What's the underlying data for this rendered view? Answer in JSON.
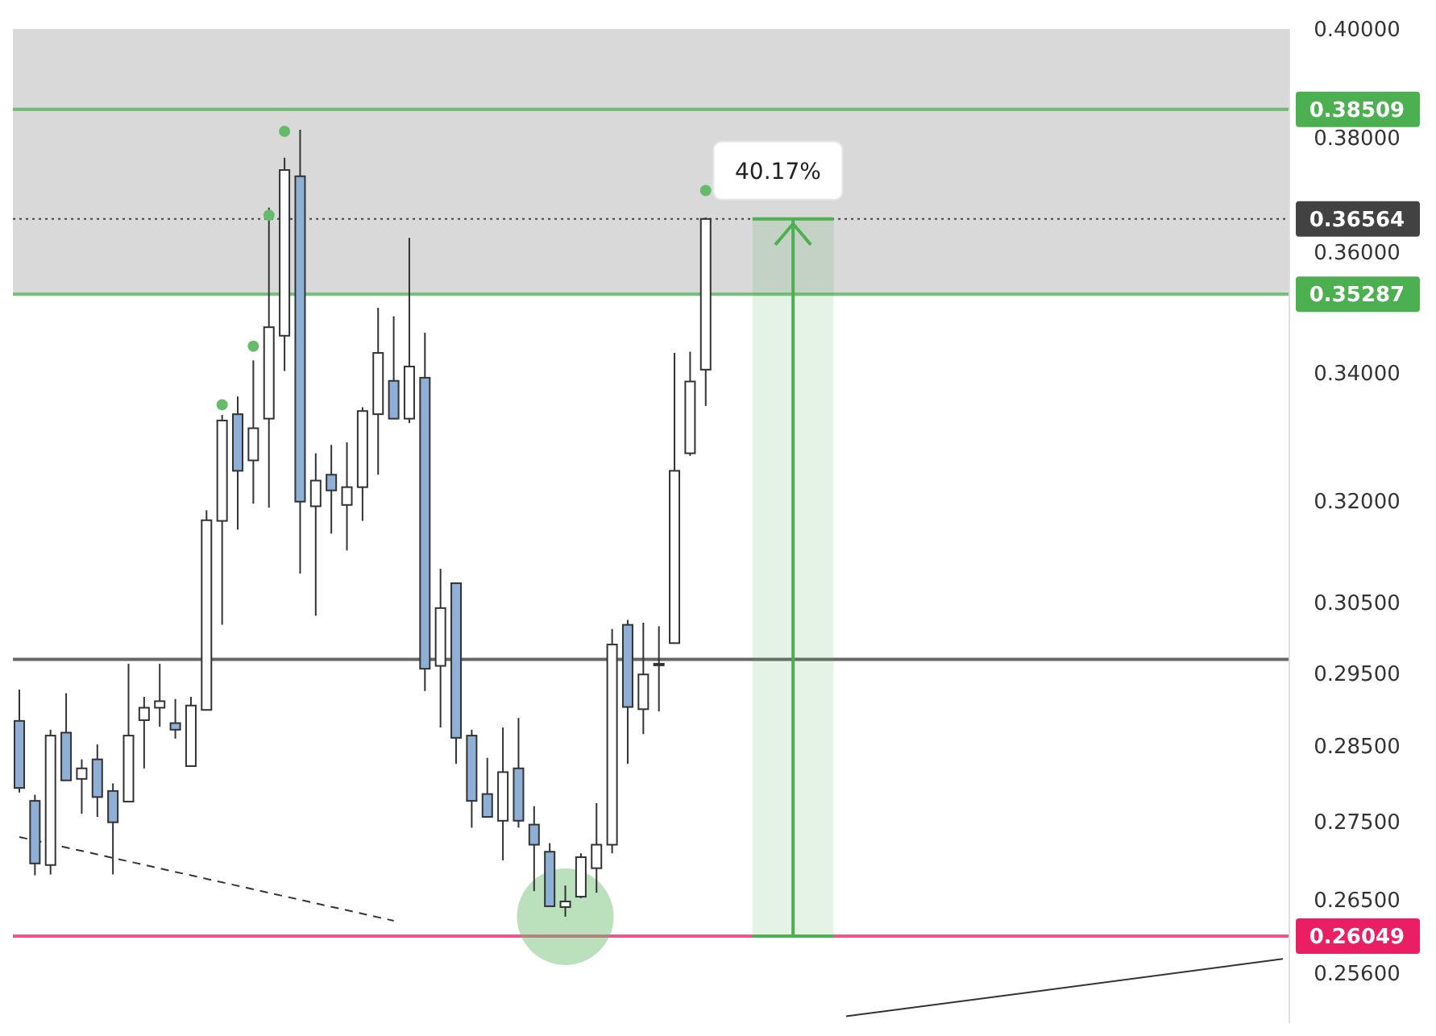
{
  "chart_data": {
    "type": "candlestick",
    "categories": [
      null,
      null,
      null,
      null,
      null,
      null,
      null,
      null,
      null,
      null,
      null,
      null,
      null,
      null,
      null,
      null,
      null,
      null,
      null,
      null,
      null,
      null,
      null,
      null,
      null,
      null,
      null,
      null,
      null,
      null,
      null,
      null,
      null,
      null,
      null,
      null,
      null,
      null,
      null,
      null,
      null,
      null,
      null,
      null,
      null,
      null,
      null,
      null,
      null,
      null,
      null,
      null,
      null,
      null,
      null,
      null,
      null,
      null,
      null,
      null,
      null,
      null,
      null,
      null,
      null,
      null,
      null,
      null,
      null,
      null,
      null,
      null,
      null,
      null,
      null,
      null,
      null,
      null,
      null,
      null,
      null,
      null
    ],
    "ohlc": [
      [
        0.2884,
        0.2927,
        0.2788,
        0.2794
      ],
      [
        0.2777,
        0.2785,
        0.2681,
        0.2696
      ],
      [
        0.2694,
        0.2872,
        0.2682,
        0.2864
      ],
      [
        0.2868,
        0.2922,
        0.2804,
        0.2804
      ],
      [
        0.2806,
        0.2832,
        0.276,
        0.282
      ],
      [
        0.2832,
        0.2852,
        0.2756,
        0.2782
      ],
      [
        0.279,
        0.28,
        0.2682,
        0.2749
      ],
      [
        0.2776,
        0.2963,
        0.2776,
        0.2864
      ],
      [
        0.2885,
        0.2917,
        0.282,
        0.2902
      ],
      [
        0.2902,
        0.2963,
        0.2876,
        0.2911
      ],
      [
        0.2881,
        0.2914,
        0.286,
        0.2872
      ],
      [
        0.2823,
        0.2917,
        0.2823,
        0.2905
      ],
      [
        0.2899,
        0.3186,
        0.2899,
        0.3171
      ],
      [
        0.317,
        0.3333,
        0.3018,
        0.3324
      ],
      [
        0.3334,
        0.3362,
        0.3157,
        0.3246
      ],
      [
        0.3262,
        0.342,
        0.3196,
        0.3312
      ],
      [
        0.3327,
        0.3676,
        0.319,
        0.3474
      ],
      [
        0.346,
        0.3764,
        0.3403,
        0.3742
      ],
      [
        0.3731,
        0.3814,
        0.3092,
        0.3199
      ],
      [
        0.3192,
        0.3273,
        0.3031,
        0.3231
      ],
      [
        0.324,
        0.3286,
        0.3151,
        0.3216
      ],
      [
        0.3194,
        0.329,
        0.3126,
        0.3221
      ],
      [
        0.3221,
        0.3345,
        0.317,
        0.3339
      ],
      [
        0.3334,
        0.3506,
        0.324,
        0.3432
      ],
      [
        0.3387,
        0.3492,
        0.3327,
        0.3327
      ],
      [
        0.3327,
        0.3624,
        0.332,
        0.341
      ],
      [
        0.3392,
        0.3465,
        0.2925,
        0.2956
      ],
      [
        0.296,
        0.3099,
        0.2875,
        0.3042
      ],
      [
        0.3078,
        0.3078,
        0.2826,
        0.2861
      ],
      [
        0.2864,
        0.2872,
        0.2742,
        0.2777
      ],
      [
        0.2786,
        0.2834,
        0.2756,
        0.2756
      ],
      [
        0.2751,
        0.2875,
        0.27,
        0.2815
      ],
      [
        0.282,
        0.2888,
        0.2742,
        0.2751
      ],
      [
        0.2746,
        0.277,
        0.2661,
        0.272
      ],
      [
        0.2711,
        0.2722,
        0.2642,
        0.2642
      ],
      [
        0.2641,
        0.2668,
        0.2629,
        0.2648
      ],
      [
        0.2654,
        0.2709,
        0.2652,
        0.2704
      ],
      [
        0.269,
        0.2774,
        0.2659,
        0.272
      ],
      [
        0.272,
        0.3012,
        0.2709,
        0.299
      ],
      [
        0.3018,
        0.3025,
        0.2826,
        0.2903
      ],
      [
        0.29,
        0.3021,
        0.2866,
        0.2948
      ],
      [
        0.2961,
        0.3016,
        0.2897,
        0.2963
      ],
      [
        0.2992,
        0.3432,
        0.2992,
        0.3246
      ],
      [
        0.3273,
        0.3434,
        0.3269,
        0.3386
      ],
      [
        0.3405,
        0.3659,
        0.3347,
        0.36564
      ],
      null,
      null,
      null,
      null,
      null,
      null,
      null,
      null,
      null,
      null,
      null,
      null,
      null,
      null,
      null,
      null,
      null,
      null,
      null,
      null,
      null,
      null,
      null,
      null,
      null,
      null,
      null,
      null,
      null,
      null,
      null,
      null,
      null,
      null,
      null,
      null,
      null
    ],
    "colors": [
      "#8fb0d6",
      "#8fb0d6",
      "#ffffff",
      "#8fb0d6",
      "#ffffff",
      "#8fb0d6",
      "#8fb0d6",
      "#ffffff",
      "#ffffff",
      "#ffffff",
      "#8fb0d6",
      "#ffffff",
      "#ffffff",
      "#ffffff",
      "#8fb0d6",
      "#ffffff",
      "#ffffff",
      "#ffffff",
      "#8fb0d6",
      "#ffffff",
      "#8fb0d6",
      "#ffffff",
      "#ffffff",
      "#ffffff",
      "#8fb0d6",
      "#ffffff",
      "#8fb0d6",
      "#ffffff",
      "#8fb0d6",
      "#8fb0d6",
      "#8fb0d6",
      "#ffffff",
      "#8fb0d6",
      "#8fb0d6",
      "#8fb0d6",
      "#ffffff",
      "#ffffff",
      "#ffffff",
      "#ffffff",
      "#8fb0d6",
      "#ffffff",
      "#ffffff",
      "#ffffff",
      "#ffffff",
      "#ffffff",
      null,
      null,
      null,
      null,
      null,
      null,
      null,
      null,
      null,
      null,
      null,
      null,
      null,
      null,
      null,
      null,
      null,
      null,
      null,
      null,
      null,
      null,
      null,
      null,
      null,
      null,
      null,
      null,
      null,
      null,
      null,
      null,
      null,
      null,
      null,
      null,
      null
    ],
    "series": [
      {
        "type": "scatter",
        "color": "#66bb6a",
        "marker": "circle",
        "values": [
          null,
          null,
          null,
          null,
          null,
          null,
          null,
          null,
          null,
          null,
          null,
          null,
          null,
          0.3349,
          null,
          0.3443,
          0.3663,
          0.3811,
          null,
          null,
          null,
          null,
          null,
          null,
          null,
          null,
          null,
          null,
          null,
          null,
          null,
          null,
          null,
          null,
          null,
          null,
          null,
          null,
          null,
          null,
          null,
          null,
          null,
          null,
          0.3706,
          null,
          null,
          null,
          null,
          null,
          null,
          null,
          null,
          null,
          null,
          null,
          null,
          null,
          null,
          null,
          null,
          null,
          null,
          null,
          null,
          null,
          null,
          null,
          null,
          null,
          null,
          null,
          null,
          null,
          null,
          null,
          null,
          null,
          null,
          null,
          null,
          null
        ]
      },
      {
        "type": "line",
        "color": "#333333",
        "line_style": "dashed",
        "values": [
          0.273,
          null,
          null,
          null,
          null,
          null,
          null,
          null,
          null,
          null,
          null,
          null,
          null,
          null,
          null,
          null,
          null,
          null,
          null,
          null,
          null,
          null,
          null,
          null,
          0.2624,
          null,
          null,
          null,
          null,
          null,
          null,
          null,
          null,
          null,
          null,
          null,
          null,
          null,
          null,
          null,
          null,
          null,
          null,
          null,
          null,
          null,
          null,
          null,
          null,
          null,
          null,
          null,
          null,
          null,
          null,
          null,
          null,
          null,
          null,
          null,
          null,
          null,
          null,
          null,
          null,
          null,
          null,
          null,
          null,
          null,
          null,
          null,
          null,
          null,
          null,
          null,
          null,
          null,
          null,
          null,
          null,
          null
        ]
      },
      {
        "type": "line",
        "color": "#333333",
        "line_style": "solid",
        "values": [
          null,
          null,
          null,
          null,
          null,
          null,
          null,
          null,
          null,
          null,
          null,
          null,
          null,
          null,
          null,
          null,
          null,
          null,
          null,
          null,
          null,
          null,
          null,
          null,
          null,
          null,
          null,
          null,
          null,
          null,
          null,
          null,
          null,
          null,
          null,
          null,
          null,
          null,
          null,
          null,
          null,
          null,
          null,
          null,
          null,
          null,
          null,
          null,
          null,
          null,
          null,
          null,
          null,
          0.2508,
          null,
          null,
          null,
          null,
          null,
          null,
          null,
          null,
          null,
          null,
          null,
          null,
          null,
          null,
          null,
          null,
          null,
          null,
          null,
          null,
          null,
          null,
          null,
          null,
          null,
          null,
          null,
          0.2577
        ]
      }
    ],
    "log": true,
    "ylim": [
      0.25,
      0.4
    ],
    "yticks": [
      {
        "value": 0.256,
        "label": "0.25600"
      },
      {
        "value": 0.265,
        "label": "0.26500"
      },
      {
        "value": 0.275,
        "label": "0.27500"
      },
      {
        "value": 0.285,
        "label": "0.28500"
      },
      {
        "value": 0.295,
        "label": "0.29500"
      },
      {
        "value": 0.305,
        "label": "0.30500"
      },
      {
        "value": 0.32,
        "label": "0.32000"
      },
      {
        "value": 0.34,
        "label": "0.34000"
      },
      {
        "value": 0.36,
        "label": "0.36000"
      },
      {
        "value": 0.38,
        "label": "0.38000"
      },
      {
        "value": 0.4,
        "label": "0.40000"
      }
    ],
    "ref_lines": [
      {
        "axis": "y",
        "value": 0.38509,
        "label": "0.38509",
        "color": "#4caf50"
      },
      {
        "axis": "y",
        "value": 0.36564,
        "label": "0.36564",
        "color": "#424242",
        "line_style": "dotted"
      },
      {
        "axis": "y",
        "value": 0.35287,
        "label": "0.35287",
        "color": "#4caf50"
      },
      {
        "axis": "y",
        "value": 0.26049,
        "label": "0.26049",
        "color": "#e91e63"
      },
      {
        "axis": "y",
        "value": 0.2969,
        "color": "#333333"
      }
    ],
    "bands": [
      {
        "axis": "y",
        "from": 0.35287,
        "to": 0.4,
        "color": "#d9d9d9"
      }
    ],
    "annotations": [
      {
        "text": "40.17%",
        "y": 0.36564
      }
    ]
  }
}
